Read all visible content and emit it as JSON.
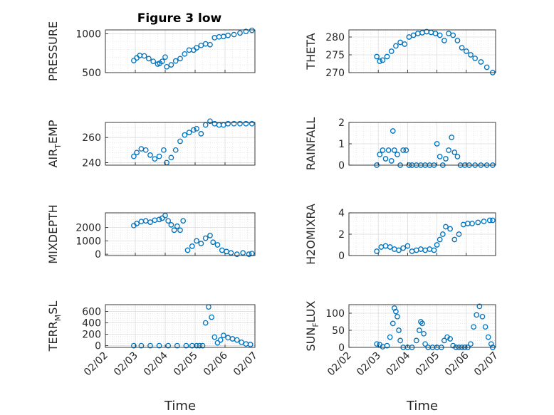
{
  "figure": {
    "title": "Figure 3 low",
    "marker_color": "#0072BD",
    "date_ticks": [
      "02/02",
      "02/03",
      "02/04",
      "02/05",
      "02/06",
      "02/07"
    ]
  },
  "chart_data": [
    {
      "type": "scatter",
      "ylabel": "PRESSURE",
      "ylim": [
        500,
        1050
      ],
      "yticks": [
        500,
        1000
      ],
      "x_range_days": [
        2,
        7
      ],
      "grid": true,
      "minor_grid": true,
      "x": [
        2.95,
        3.05,
        3.15,
        3.3,
        3.45,
        3.6,
        3.75,
        3.82,
        3.9,
        4.0,
        4.05,
        4.2,
        4.35,
        4.5,
        4.65,
        4.8,
        4.95,
        5.05,
        5.2,
        5.35,
        5.5,
        5.65,
        5.8,
        5.95,
        6.1,
        6.3,
        6.5,
        6.7,
        6.9
      ],
      "values": [
        655,
        690,
        720,
        715,
        680,
        645,
        610,
        620,
        645,
        700,
        575,
        600,
        650,
        680,
        740,
        790,
        790,
        820,
        850,
        870,
        860,
        950,
        960,
        965,
        980,
        990,
        1010,
        1030,
        1045
      ]
    },
    {
      "type": "scatter",
      "ylabel": "THETA",
      "ylim": [
        270,
        282
      ],
      "yticks": [
        270,
        275,
        280
      ],
      "x_range_days": [
        2,
        7
      ],
      "grid": true,
      "minor_grid": true,
      "x": [
        2.95,
        3.05,
        3.15,
        3.3,
        3.45,
        3.6,
        3.75,
        3.9,
        4.05,
        4.2,
        4.35,
        4.5,
        4.65,
        4.8,
        4.95,
        5.1,
        5.25,
        5.4,
        5.55,
        5.7,
        5.85,
        6.0,
        6.15,
        6.3,
        6.5,
        6.7,
        6.9
      ],
      "values": [
        274.5,
        273.2,
        273.5,
        274.5,
        276.0,
        277.5,
        278.5,
        278.0,
        280.0,
        280.5,
        281.0,
        281.2,
        281.5,
        281.3,
        281.0,
        280.5,
        279.0,
        281.0,
        280.5,
        279.0,
        277.0,
        276.0,
        275.0,
        274.0,
        273.0,
        271.5,
        270.0
      ]
    },
    {
      "type": "scatter",
      "ylabel": "AIR_TEMP",
      "ylim": [
        238,
        272
      ],
      "yticks": [
        240,
        260
      ],
      "x_range_days": [
        2,
        7
      ],
      "grid": true,
      "minor_grid": true,
      "x": [
        2.95,
        3.05,
        3.2,
        3.35,
        3.5,
        3.65,
        3.8,
        3.95,
        4.05,
        4.2,
        4.35,
        4.5,
        4.65,
        4.8,
        4.95,
        5.05,
        5.2,
        5.35,
        5.5,
        5.65,
        5.8,
        5.95,
        6.1,
        6.3,
        6.5,
        6.7,
        6.9
      ],
      "values": [
        245,
        248,
        251,
        250,
        246,
        243,
        245,
        250,
        240,
        244,
        250,
        257,
        262,
        264,
        266,
        267,
        263,
        270,
        273,
        271,
        270,
        270,
        271,
        271,
        271,
        271,
        271
      ]
    },
    {
      "type": "scatter",
      "ylabel": "RAINFALL",
      "ylim": [
        0,
        2
      ],
      "yticks": [
        0,
        1,
        2
      ],
      "x_range_days": [
        2,
        7
      ],
      "grid": true,
      "minor_grid": true,
      "x": [
        2.95,
        3.05,
        3.15,
        3.25,
        3.35,
        3.45,
        3.5,
        3.55,
        3.65,
        3.75,
        3.85,
        3.95,
        4.05,
        4.15,
        4.3,
        4.45,
        4.6,
        4.75,
        4.9,
        5.0,
        5.1,
        5.2,
        5.3,
        5.4,
        5.5,
        5.6,
        5.7,
        5.8,
        5.95,
        6.1,
        6.3,
        6.5,
        6.7,
        6.9
      ],
      "values": [
        0,
        0.5,
        0.7,
        0.3,
        0.7,
        0.2,
        1.6,
        0.7,
        0.5,
        0,
        0.7,
        0.7,
        0,
        0,
        0,
        0,
        0,
        0,
        0,
        1.0,
        0.4,
        0,
        0.3,
        0.7,
        1.3,
        0.6,
        0.4,
        0,
        0,
        0,
        0,
        0,
        0,
        0
      ]
    },
    {
      "type": "scatter",
      "ylabel": "MIXDEPTH",
      "ylim": [
        -100,
        3100
      ],
      "yticks": [
        0,
        1000,
        2000
      ],
      "x_range_days": [
        2,
        7
      ],
      "grid": true,
      "minor_grid": true,
      "x": [
        2.95,
        3.05,
        3.2,
        3.35,
        3.5,
        3.65,
        3.8,
        3.9,
        4.0,
        4.1,
        4.2,
        4.3,
        4.4,
        4.5,
        4.6,
        4.75,
        4.9,
        5.05,
        5.2,
        5.35,
        5.5,
        5.6,
        5.75,
        5.9,
        6.05,
        6.2,
        6.4,
        6.6,
        6.8,
        6.9
      ],
      "values": [
        2150,
        2300,
        2450,
        2500,
        2400,
        2550,
        2600,
        2700,
        2900,
        2500,
        2200,
        1800,
        2100,
        1800,
        2500,
        300,
        600,
        1000,
        800,
        1200,
        1400,
        900,
        700,
        300,
        200,
        100,
        0,
        100,
        0,
        50
      ]
    },
    {
      "type": "scatter",
      "ylabel": "H2OMIXRA",
      "ylim": [
        0,
        4
      ],
      "yticks": [
        0,
        2,
        4
      ],
      "x_range_days": [
        2,
        7
      ],
      "grid": true,
      "minor_grid": true,
      "x": [
        2.95,
        3.1,
        3.25,
        3.4,
        3.55,
        3.7,
        3.85,
        4.0,
        4.15,
        4.3,
        4.45,
        4.6,
        4.75,
        4.9,
        5.0,
        5.1,
        5.2,
        5.3,
        5.45,
        5.6,
        5.75,
        5.9,
        6.05,
        6.2,
        6.4,
        6.6,
        6.8,
        6.9
      ],
      "values": [
        0.4,
        0.8,
        0.9,
        0.8,
        0.6,
        0.5,
        0.7,
        0.9,
        0.4,
        0.5,
        0.6,
        0.5,
        0.6,
        0.5,
        1.0,
        1.5,
        2.0,
        2.7,
        2.5,
        1.5,
        2.0,
        2.9,
        3.0,
        3.0,
        3.1,
        3.2,
        3.3,
        3.3
      ]
    },
    {
      "type": "scatter",
      "ylabel": "TERR_MSL",
      "ylim": [
        -30,
        720
      ],
      "yticks": [
        0,
        200,
        400,
        600
      ],
      "x_range_days": [
        2,
        7
      ],
      "grid": true,
      "minor_grid": true,
      "x": [
        2.95,
        3.2,
        3.5,
        3.8,
        4.1,
        4.4,
        4.7,
        4.9,
        5.05,
        5.15,
        5.25,
        5.35,
        5.45,
        5.55,
        5.65,
        5.75,
        5.85,
        5.95,
        6.1,
        6.25,
        6.4,
        6.55,
        6.7,
        6.85
      ],
      "values": [
        0,
        0,
        0,
        0,
        0,
        0,
        0,
        0,
        0,
        0,
        0,
        400,
        680,
        500,
        150,
        50,
        100,
        180,
        140,
        120,
        100,
        60,
        30,
        20
      ]
    },
    {
      "type": "scatter",
      "ylabel": "SUN_FLUX",
      "ylim": [
        0,
        125
      ],
      "yticks": [
        0,
        50,
        100
      ],
      "x_range_days": [
        2,
        7
      ],
      "grid": true,
      "minor_grid": true,
      "x": [
        2.95,
        3.05,
        3.15,
        3.3,
        3.4,
        3.5,
        3.55,
        3.6,
        3.65,
        3.7,
        3.75,
        3.85,
        4.0,
        4.15,
        4.3,
        4.4,
        4.45,
        4.5,
        4.55,
        4.6,
        4.7,
        4.85,
        5.0,
        5.15,
        5.25,
        5.35,
        5.45,
        5.55,
        5.65,
        5.75,
        5.85,
        5.95,
        6.05,
        6.15,
        6.25,
        6.35,
        6.45,
        6.55,
        6.65,
        6.75,
        6.85,
        6.9
      ],
      "values": [
        10,
        8,
        2,
        5,
        30,
        70,
        115,
        105,
        90,
        50,
        20,
        0,
        0,
        0,
        20,
        50,
        75,
        70,
        40,
        10,
        0,
        0,
        0,
        0,
        20,
        30,
        25,
        5,
        0,
        0,
        0,
        0,
        0,
        10,
        60,
        95,
        120,
        90,
        60,
        30,
        10,
        0
      ]
    }
  ]
}
